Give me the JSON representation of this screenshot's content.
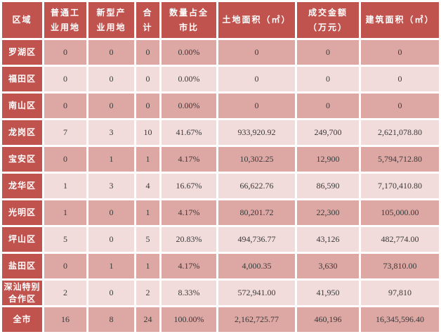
{
  "colors": {
    "header_bg": "#c0534e",
    "header_text": "#ffffff",
    "row_odd_bg": "#dda7a4",
    "row_even_bg": "#f2dcdb",
    "cell_text": "#3a3a3a",
    "grid_gap": "#ffffff"
  },
  "chart_data": {
    "type": "table",
    "title": "",
    "columns": [
      "区域",
      "普通工业用地",
      "新型产业用地",
      "合计",
      "数量占全市比",
      "土地面积（㎡）",
      "成交金额（万元）",
      "建筑面积（㎡）"
    ],
    "rows": [
      {
        "region": "罗湖区",
        "values": [
          "0",
          "0",
          "0",
          "0.00%",
          "0",
          "0",
          "0"
        ]
      },
      {
        "region": "福田区",
        "values": [
          "0",
          "0",
          "0",
          "0.00%",
          "0",
          "0",
          "0"
        ]
      },
      {
        "region": "南山区",
        "values": [
          "0",
          "0",
          "0",
          "0.00%",
          "0",
          "0",
          "0"
        ]
      },
      {
        "region": "龙岗区",
        "values": [
          "7",
          "3",
          "10",
          "41.67%",
          "933,920.92",
          "249,700",
          "2,621,078.80"
        ]
      },
      {
        "region": "宝安区",
        "values": [
          "0",
          "1",
          "1",
          "4.17%",
          "10,302.25",
          "12,900",
          "5,794,712.80"
        ]
      },
      {
        "region": "龙华区",
        "values": [
          "1",
          "3",
          "4",
          "16.67%",
          "66,622.76",
          "86,590",
          "7,170,410.80"
        ]
      },
      {
        "region": "光明区",
        "values": [
          "1",
          "0",
          "1",
          "4.17%",
          "80,201.72",
          "22,300",
          "105,000.00"
        ]
      },
      {
        "region": "坪山区",
        "values": [
          "5",
          "0",
          "5",
          "20.83%",
          "494,736.77",
          "43,126",
          "482,774.00"
        ]
      },
      {
        "region": "盐田区",
        "values": [
          "0",
          "1",
          "1",
          "4.17%",
          "4,000.35",
          "3,630",
          "73,810.00"
        ]
      },
      {
        "region": "深汕特别合作区",
        "values": [
          "2",
          "0",
          "2",
          "8.33%",
          "572,941.00",
          "41,950",
          "97,810"
        ]
      },
      {
        "region": "全市",
        "values": [
          "16",
          "8",
          "24",
          "100.00%",
          "2,162,725.77",
          "460,196",
          "16,345,596.40"
        ]
      }
    ]
  }
}
